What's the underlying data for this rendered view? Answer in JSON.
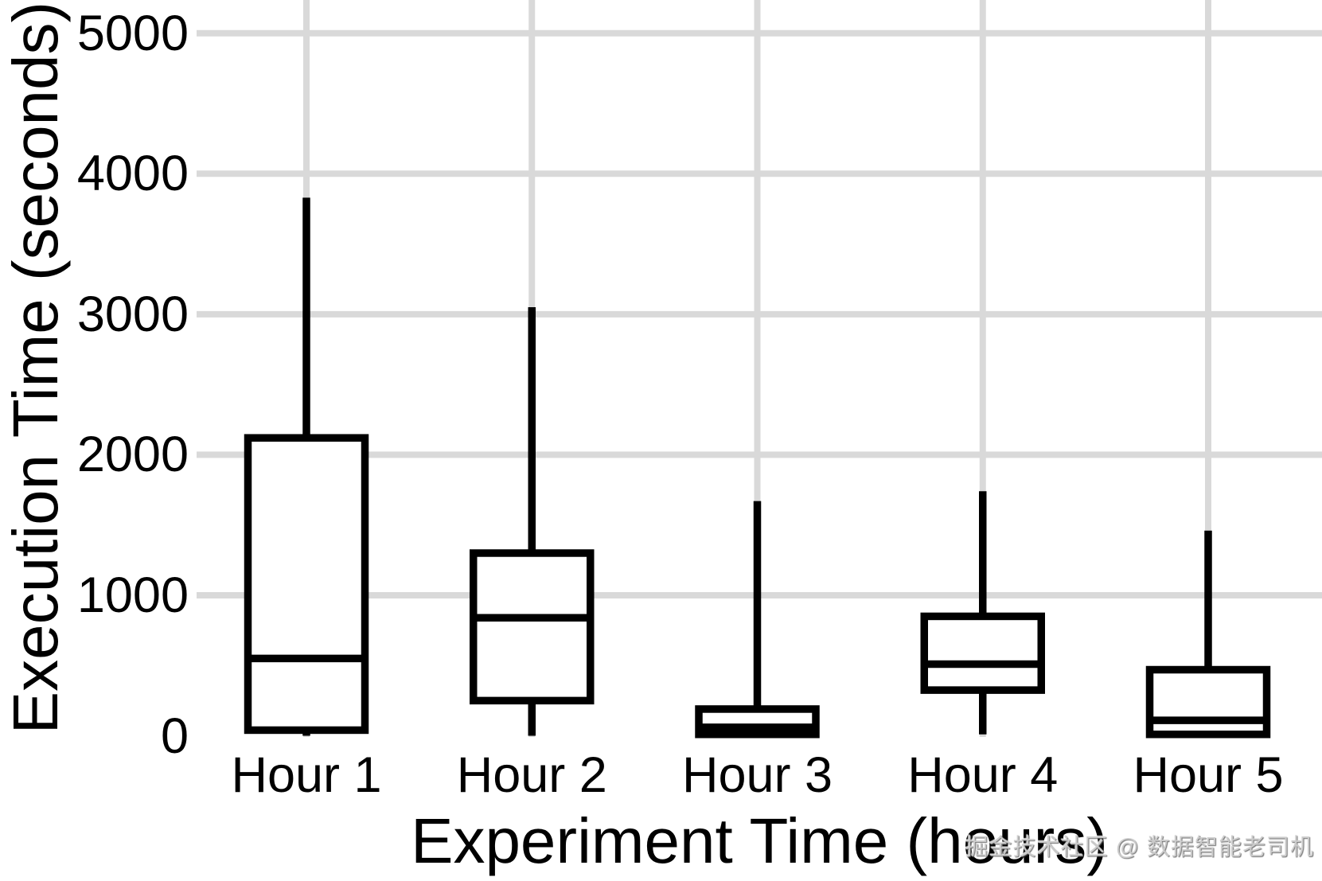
{
  "watermark": {
    "text": "掘金技术社区 @ 数据智能老司机"
  },
  "chart_data": {
    "type": "boxplot",
    "title": "",
    "xlabel": "Experiment Time (hours)",
    "ylabel": "Execution Time (seconds)",
    "categories": [
      "Hour 1",
      "Hour 2",
      "Hour 3",
      "Hour 4",
      "Hour 5"
    ],
    "y_ticks": [
      0,
      1000,
      2000,
      3000,
      4000,
      5000
    ],
    "ylim": [
      0,
      5250
    ],
    "grid": true,
    "legend": "none",
    "colors": {
      "box_stroke": "#000000",
      "box_fill": "#ffffff",
      "gridline": "#d9d9d9"
    },
    "boxes": [
      {
        "category": "Hour 1",
        "min": 0,
        "q1": 40,
        "median": 550,
        "q3": 2120,
        "max": 3830
      },
      {
        "category": "Hour 2",
        "min": 0,
        "q1": 250,
        "median": 840,
        "q3": 1300,
        "max": 3050
      },
      {
        "category": "Hour 3",
        "min": 0,
        "q1": 10,
        "median": 60,
        "q3": 190,
        "max": 1670
      },
      {
        "category": "Hour 4",
        "min": 10,
        "q1": 325,
        "median": 510,
        "q3": 850,
        "max": 1740
      },
      {
        "category": "Hour 5",
        "min": 0,
        "q1": 10,
        "median": 110,
        "q3": 470,
        "max": 1460
      }
    ]
  }
}
